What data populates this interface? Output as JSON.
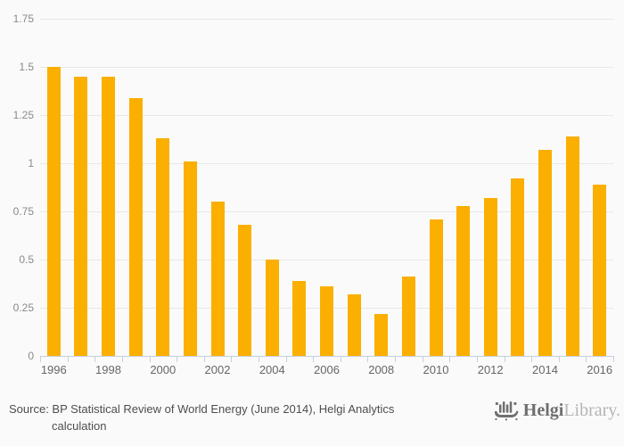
{
  "chart_data": {
    "type": "bar",
    "title": "",
    "xlabel": "",
    "ylabel": "",
    "categories": [
      "1996",
      "1997",
      "1998",
      "1999",
      "2000",
      "2001",
      "2002",
      "2003",
      "2004",
      "2005",
      "2006",
      "2007",
      "2008",
      "2009",
      "2010",
      "2011",
      "2012",
      "2013",
      "2014",
      "2015",
      "2016"
    ],
    "values": [
      1.5,
      1.45,
      1.45,
      1.34,
      1.13,
      1.01,
      0.8,
      0.68,
      0.5,
      0.39,
      0.36,
      0.32,
      0.22,
      0.41,
      0.71,
      0.78,
      0.82,
      0.92,
      1.07,
      1.14,
      0.89
    ],
    "ylim": [
      0,
      1.75
    ],
    "ytick_values": [
      0,
      0.25,
      0.5,
      0.75,
      1,
      1.25,
      1.5,
      1.75
    ],
    "ytick_labels": [
      "0",
      "0.25",
      "0.5",
      "0.75",
      "1",
      "1.25",
      "1.5",
      "1.75"
    ],
    "xtick_labels": [
      "1996",
      "1998",
      "2000",
      "2002",
      "2004",
      "2006",
      "2008",
      "2010",
      "2012",
      "2014",
      "2016"
    ],
    "grid": true,
    "legend": false,
    "colors": {
      "bar": "#FBAF00",
      "gridline": "#e8e8e8",
      "axis": "#c6cede",
      "ytick_text": "#8a8a8a",
      "xtick_text": "#666666",
      "background": "#fafafa"
    }
  },
  "footer": {
    "source_line1": "Source: BP Statistical Review of World Energy (June 2014), Helgi Analytics",
    "source_line2": "calculation",
    "logo_bold": "Helgi",
    "logo_light": "Library."
  }
}
